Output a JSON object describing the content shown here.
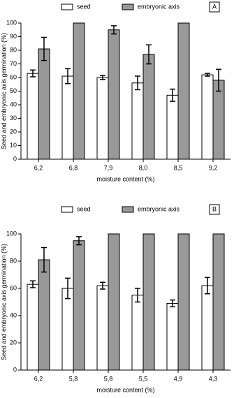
{
  "chart_data": [
    {
      "type": "bar",
      "panel": "A",
      "x_label": "moisture content (%)",
      "y_label": "Seed and embryonic axis germination (%)",
      "categories": [
        "6,2",
        "6,8",
        "7,9",
        "8,0",
        "8,5",
        "9,2"
      ],
      "series": [
        {
          "name": "seed",
          "color": "#ffffff",
          "values": [
            63,
            61,
            60,
            56,
            47,
            62
          ],
          "errors": [
            2.5,
            5.5,
            1.5,
            5,
            4.5,
            1
          ]
        },
        {
          "name": "embryonic axis",
          "color": "#999999",
          "values": [
            81,
            100,
            95,
            77,
            100,
            58
          ],
          "errors": [
            8.5,
            null,
            3,
            7,
            null,
            8
          ]
        }
      ],
      "ylim": [
        0,
        100
      ],
      "yticks": [
        0,
        10,
        20,
        30,
        40,
        50,
        60,
        70,
        80,
        90,
        100
      ]
    },
    {
      "type": "bar",
      "panel": "B",
      "x_label": "moisture content (%)",
      "y_label": "Seed and embryonic axis germination (%)",
      "categories": [
        "6,2",
        "5,8",
        "5,8",
        "5,5",
        "4,9",
        "4,3"
      ],
      "series": [
        {
          "name": "seed",
          "color": "#ffffff",
          "values": [
            63,
            60,
            62,
            55,
            49,
            62
          ],
          "errors": [
            2.5,
            7.5,
            2.5,
            5,
            2.5,
            6
          ]
        },
        {
          "name": "embryonic axis",
          "color": "#999999",
          "values": [
            81,
            95,
            100,
            100,
            100,
            100
          ],
          "errors": [
            9,
            3,
            null,
            null,
            null,
            null
          ]
        }
      ],
      "ylim": [
        0,
        100
      ],
      "yticks": [
        0,
        20,
        40,
        60,
        80,
        100
      ]
    }
  ]
}
